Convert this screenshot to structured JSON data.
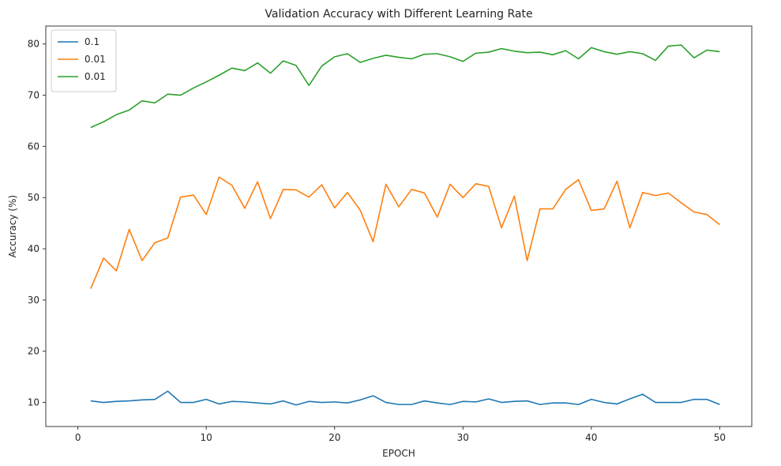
{
  "chart_data": {
    "type": "line",
    "title": "Validation Accuracy with Different Learning Rate",
    "xlabel": "EPOCH",
    "ylabel": "Accuracy (%)",
    "xlim": [
      -2.5,
      52.5
    ],
    "ylim": [
      5.3,
      83.5
    ],
    "xticks": [
      0,
      10,
      20,
      30,
      40,
      50
    ],
    "yticks": [
      10,
      20,
      30,
      40,
      50,
      60,
      70,
      80
    ],
    "grid": false,
    "legend": "top-left",
    "x": [
      1,
      2,
      3,
      4,
      5,
      6,
      7,
      8,
      9,
      10,
      11,
      12,
      13,
      14,
      15,
      16,
      17,
      18,
      19,
      20,
      21,
      22,
      23,
      24,
      25,
      26,
      27,
      28,
      29,
      30,
      31,
      32,
      33,
      34,
      35,
      36,
      37,
      38,
      39,
      40,
      41,
      42,
      43,
      44,
      45,
      46,
      47,
      48,
      49,
      50
    ],
    "series": [
      {
        "name": "0.1",
        "color": "#1f77b4",
        "values": [
          10.3,
          10.0,
          10.2,
          10.3,
          10.5,
          10.6,
          12.2,
          10.0,
          10.0,
          10.6,
          9.7,
          10.2,
          10.1,
          9.9,
          9.7,
          10.3,
          9.5,
          10.2,
          10.0,
          10.1,
          9.9,
          10.5,
          11.3,
          10.0,
          9.6,
          9.6,
          10.3,
          9.9,
          9.6,
          10.2,
          10.1,
          10.7,
          10.0,
          10.2,
          10.3,
          9.6,
          9.9,
          9.9,
          9.6,
          10.6,
          10.0,
          9.7,
          10.7,
          11.6,
          10.0,
          10.0,
          10.0,
          10.6,
          10.6,
          9.6
        ]
      },
      {
        "name": "0.01",
        "color": "#ff7f0e",
        "values": [
          32.2,
          38.2,
          35.7,
          43.8,
          37.7,
          41.2,
          42.1,
          50.1,
          50.5,
          46.7,
          54.0,
          52.4,
          47.9,
          53.1,
          45.9,
          51.6,
          51.5,
          50.1,
          52.5,
          48.0,
          51.0,
          47.5,
          41.4,
          52.6,
          48.2,
          51.6,
          50.9,
          46.2,
          52.6,
          50.0,
          52.7,
          52.2,
          44.1,
          50.3,
          37.7,
          47.8,
          47.8,
          51.6,
          53.5,
          47.5,
          47.8,
          53.2,
          44.1,
          51.0,
          50.4,
          50.9,
          49.0,
          47.2,
          46.7,
          44.7
        ]
      },
      {
        "name": "0.01",
        "color": "#2ca02c",
        "values": [
          63.7,
          64.8,
          66.2,
          67.1,
          68.9,
          68.5,
          70.2,
          70.0,
          71.4,
          72.6,
          73.9,
          75.3,
          74.8,
          76.3,
          74.3,
          76.7,
          75.8,
          71.9,
          75.7,
          77.5,
          78.1,
          76.4,
          77.2,
          77.8,
          77.4,
          77.1,
          78.0,
          78.1,
          77.5,
          76.6,
          78.2,
          78.4,
          79.1,
          78.6,
          78.3,
          78.4,
          77.9,
          78.7,
          77.1,
          79.3,
          78.5,
          78.0,
          78.5,
          78.1,
          76.8,
          79.6,
          79.8,
          77.3,
          78.8,
          78.5
        ]
      }
    ]
  }
}
